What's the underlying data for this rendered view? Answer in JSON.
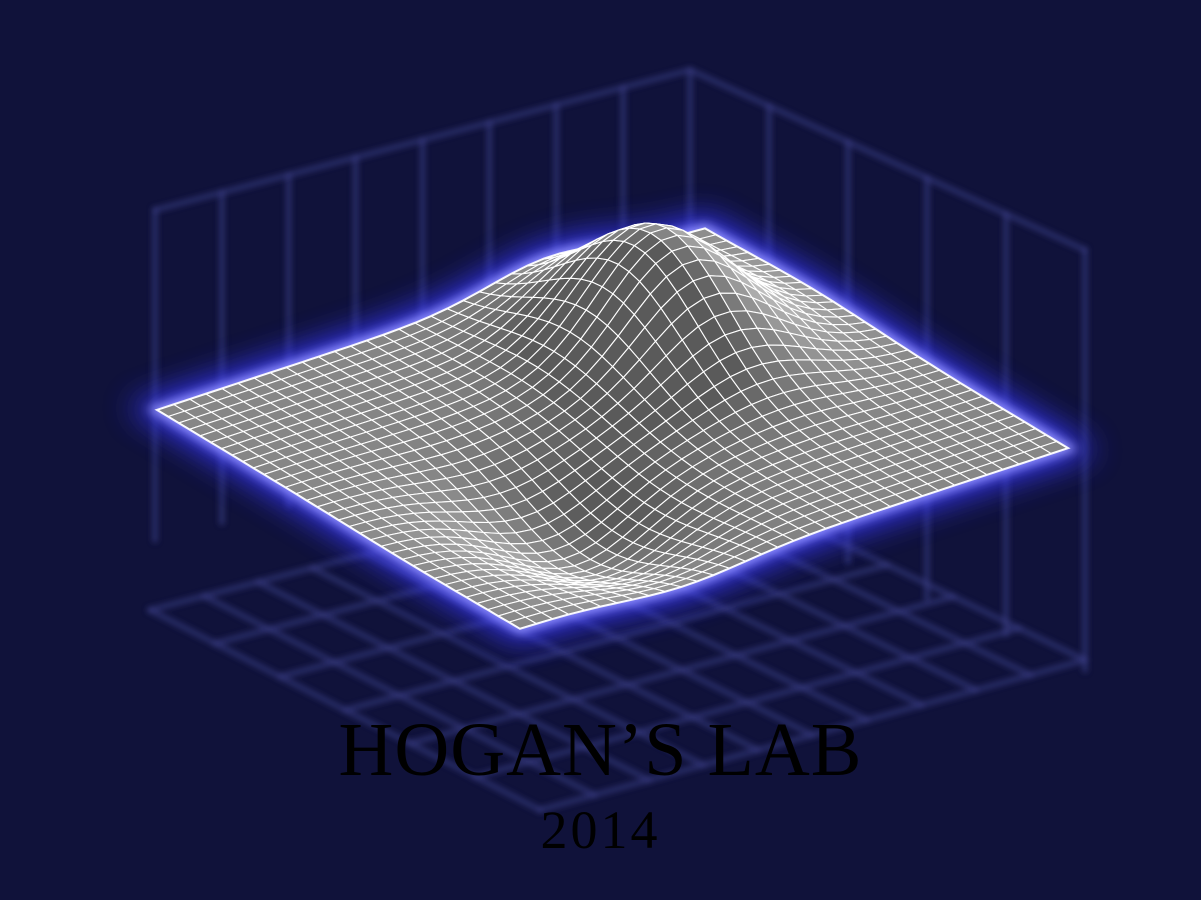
{
  "logo": {
    "title": "HOGAN’S LAB",
    "year": "2014",
    "colors": {
      "background": "#10123a",
      "glow": "#3b3bff",
      "surface_dark": "#5a5a5a",
      "surface_light": "#d8d8d8",
      "grid_lines": "#ffffff",
      "text": "#000000"
    },
    "graphic": "3d-surface-plot-icon"
  }
}
